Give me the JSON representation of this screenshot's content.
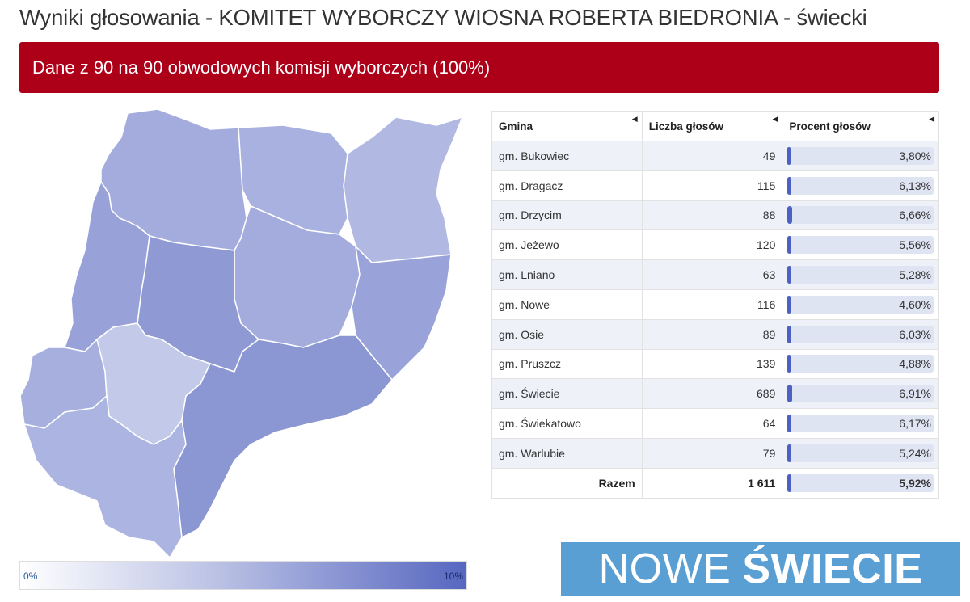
{
  "title": "Wyniki głosowania - KOMITET WYBORCZY WIOSNA ROBERTA BIEDRONIA - świecki",
  "banner": "Dane z 90 na 90 obwodowych komisji wyborczych (100%)",
  "table": {
    "headers": [
      "Gmina",
      "Liczba głosów",
      "Procent głosów"
    ],
    "rows": [
      {
        "gmina": "gm. Bukowiec",
        "votes": "49",
        "percent": "3,80%",
        "pct_value": 3.8
      },
      {
        "gmina": "gm. Dragacz",
        "votes": "115",
        "percent": "6,13%",
        "pct_value": 6.13
      },
      {
        "gmina": "gm. Drzycim",
        "votes": "88",
        "percent": "6,66%",
        "pct_value": 6.66
      },
      {
        "gmina": "gm. Jeżewo",
        "votes": "120",
        "percent": "5,56%",
        "pct_value": 5.56
      },
      {
        "gmina": "gm. Lniano",
        "votes": "63",
        "percent": "5,28%",
        "pct_value": 5.28
      },
      {
        "gmina": "gm. Nowe",
        "votes": "116",
        "percent": "4,60%",
        "pct_value": 4.6
      },
      {
        "gmina": "gm. Osie",
        "votes": "89",
        "percent": "6,03%",
        "pct_value": 6.03
      },
      {
        "gmina": "gm. Pruszcz",
        "votes": "139",
        "percent": "4,88%",
        "pct_value": 4.88
      },
      {
        "gmina": "gm. Świecie",
        "votes": "689",
        "percent": "6,91%",
        "pct_value": 6.91
      },
      {
        "gmina": "gm. Świekatowo",
        "votes": "64",
        "percent": "6,17%",
        "pct_value": 6.17
      },
      {
        "gmina": "gm. Warlubie",
        "votes": "79",
        "percent": "5,24%",
        "pct_value": 5.24
      }
    ],
    "total": {
      "label": "Razem",
      "votes": "1 611",
      "percent": "5,92%",
      "pct_value": 5.92
    },
    "scale_max": 10
  },
  "legend": {
    "min": "0%",
    "max": "10%"
  },
  "logo": {
    "part1": "NOWE",
    "part2": "ŚWIECIE"
  },
  "colors": {
    "banner": "#ad0018",
    "bar": "#4d61c2",
    "logo_bg": "#5a9fd3"
  },
  "map_regions": [
    {
      "name": "Dragacz",
      "fill": "#a3acdd"
    },
    {
      "name": "Nowe",
      "fill": "#b1b9e3"
    },
    {
      "name": "Warlubie",
      "fill": "#a8b1df"
    },
    {
      "name": "Jeżewo",
      "fill": "#a3acdd"
    },
    {
      "name": "Osie",
      "fill": "#99a3d9"
    },
    {
      "name": "Drzycim",
      "fill": "#8f9ad5"
    },
    {
      "name": "Świekatowo",
      "fill": "#98a2d8"
    },
    {
      "name": "Lniano",
      "fill": "#a6afde"
    },
    {
      "name": "Bukowiec",
      "fill": "#c3c9e9"
    },
    {
      "name": "Pruszcz",
      "fill": "#acb5e1"
    },
    {
      "name": "Świecie",
      "fill": "#8b97d3"
    }
  ]
}
